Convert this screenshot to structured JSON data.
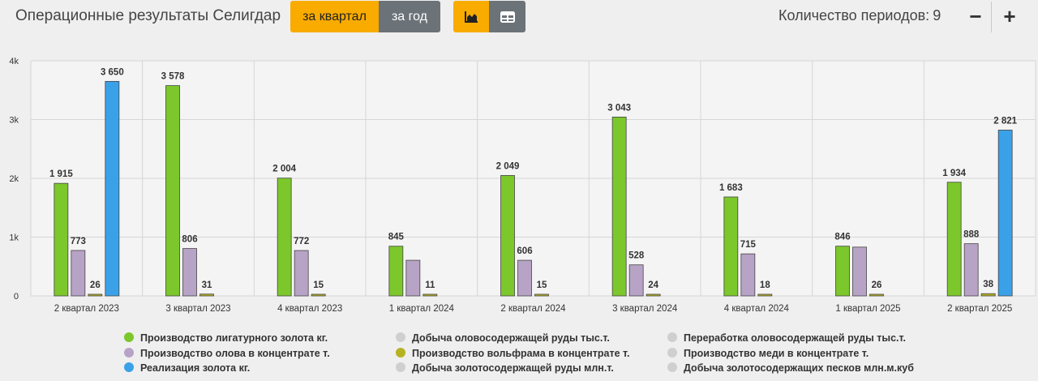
{
  "header": {
    "title": "Операционные результаты Селигдар",
    "btn_quarter": "за квартал",
    "btn_year": "за год",
    "periods_label": "Количество периодов:",
    "periods_value": "9",
    "minus": "−",
    "plus": "+"
  },
  "colors": {
    "active": "#f9ab00",
    "inactive": "#6b7278",
    "gold": "#7cc72c",
    "tin": "#b7a3c6",
    "tungsten": "#b5b224",
    "sales": "#3aa1e8",
    "disabled": "#cfcfcf"
  },
  "chart_data": {
    "type": "bar",
    "categories": [
      "2 квартал 2023",
      "3 квартал 2023",
      "4 квартал 2023",
      "1 квартал 2024",
      "2 квартал 2024",
      "3 квартал 2024",
      "4 квартал 2024",
      "1 квартал 2025",
      "2 квартал 2025"
    ],
    "ylim": [
      0,
      4000
    ],
    "yticks": [
      0,
      1000,
      2000,
      3000,
      4000
    ],
    "yticklabels": [
      "0",
      "1k",
      "2k",
      "3k",
      "4k"
    ],
    "grid": true,
    "legend_position": "bottom",
    "series": [
      {
        "name": "Производство лигатурного золота кг.",
        "color": "#7cc72c",
        "values": [
          1915,
          3578,
          2004,
          845,
          2049,
          3043,
          1683,
          846,
          1934
        ],
        "labels": [
          "1 915",
          "3 578",
          "2 004",
          "845",
          "2 049",
          "3 043",
          "1 683",
          "846",
          "1 934"
        ]
      },
      {
        "name": "Производство олова в концентрате т.",
        "color": "#b7a3c6",
        "values": [
          773,
          806,
          772,
          606,
          606,
          528,
          715,
          830,
          888
        ],
        "labels": [
          "773",
          "806",
          "772",
          "",
          "606",
          "528",
          "715",
          "",
          "888"
        ]
      },
      {
        "name": "Производство вольфрама в концентрате т.",
        "color": "#b5b224",
        "values": [
          26,
          31,
          15,
          11,
          15,
          24,
          18,
          26,
          38
        ],
        "labels": [
          "26",
          "31",
          "15",
          "11",
          "15",
          "24",
          "18",
          "26",
          "38"
        ]
      },
      {
        "name": "Реализация золота кг.",
        "color": "#3aa1e8",
        "values": [
          3650,
          null,
          null,
          null,
          null,
          null,
          null,
          null,
          2821
        ],
        "labels": [
          "3 650",
          "",
          "",
          "",
          "",
          "",
          "",
          "",
          "2 821"
        ]
      }
    ]
  },
  "legend": [
    {
      "label": "Производство лигатурного золота кг.",
      "color": "#7cc72c"
    },
    {
      "label": "Производство олова в концентрате т.",
      "color": "#b7a3c6"
    },
    {
      "label": "Реализация золота кг.",
      "color": "#3aa1e8"
    },
    {
      "label": "Добыча оловосодержащей руды тыс.т.",
      "color": "#cfcfcf"
    },
    {
      "label": "Производство вольфрама в концентрате т.",
      "color": "#b5b224"
    },
    {
      "label": "Добыча золотосодержащей руды млн.т.",
      "color": "#cfcfcf"
    },
    {
      "label": "Переработка оловосодержащей руды тыс.т.",
      "color": "#cfcfcf"
    },
    {
      "label": "Производство меди в концентрате т.",
      "color": "#cfcfcf"
    },
    {
      "label": "Добыча золотосодержащих песков млн.м.куб",
      "color": "#cfcfcf"
    }
  ]
}
